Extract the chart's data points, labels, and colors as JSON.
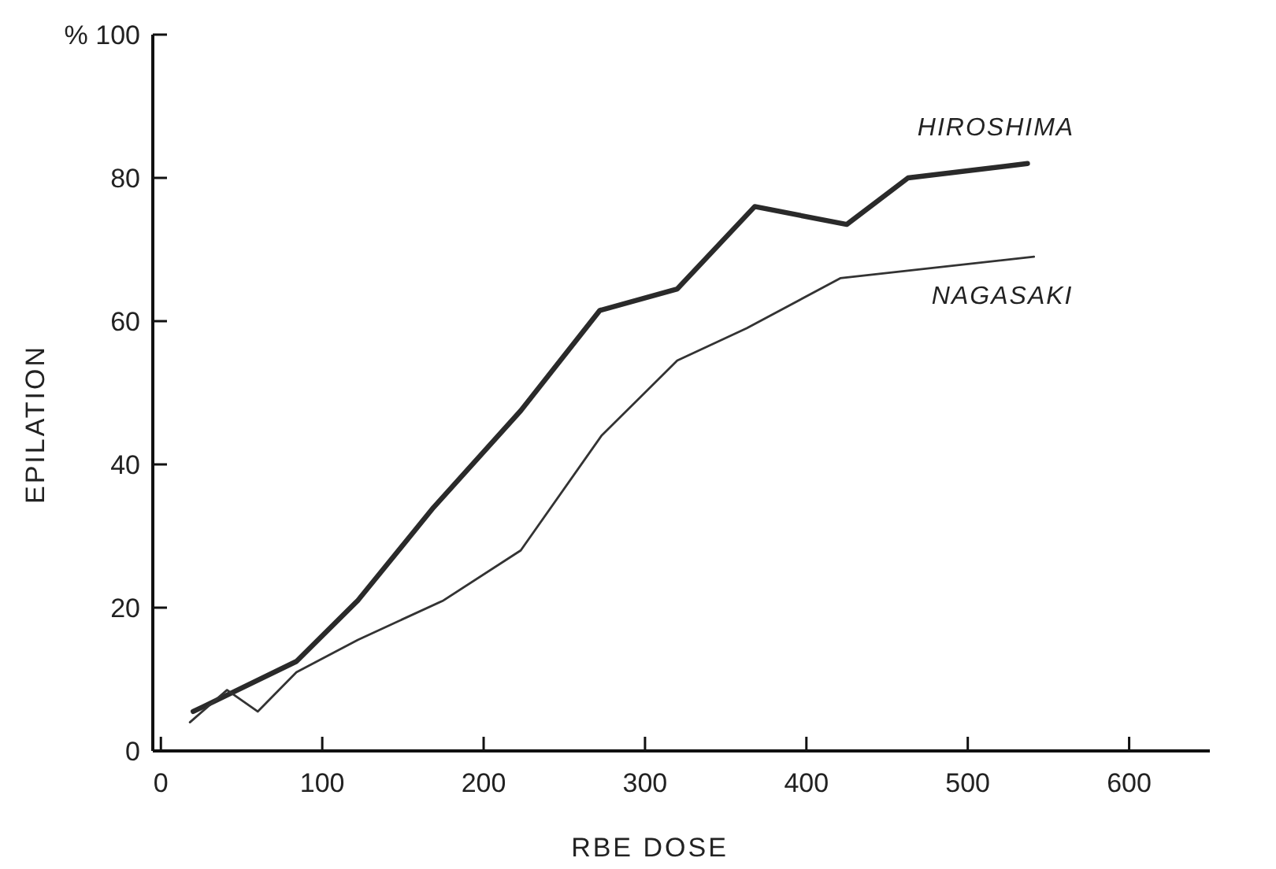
{
  "chart_data": {
    "type": "line",
    "xlabel": "RBE DOSE",
    "ylabel": "EPILATION",
    "xlim": [
      -5,
      650
    ],
    "ylim": [
      0,
      100
    ],
    "xticks": [
      0,
      100,
      200,
      300,
      400,
      500,
      600
    ],
    "yticks": [
      0,
      20,
      40,
      60,
      80,
      {
        "value": 100,
        "label": "% 100"
      }
    ],
    "grid": false,
    "marker": "none",
    "line_style": "solid",
    "series": [
      {
        "name": "HIROSHIMA",
        "color": "#2a2a2a",
        "x": [
          20,
          84,
          122,
          169,
          223,
          272,
          320,
          368,
          425,
          463,
          537
        ],
        "values": [
          5.5,
          12.5,
          21,
          34,
          47.5,
          61.5,
          64.5,
          76,
          73.5,
          80,
          82
        ]
      },
      {
        "name": "NAGASAKI",
        "color": "#333333",
        "x": [
          18,
          41,
          60,
          84,
          122,
          175,
          223,
          273,
          320,
          363,
          421,
          541
        ],
        "values": [
          4,
          8.5,
          5.5,
          11,
          15.5,
          21,
          28,
          44,
          54.5,
          59,
          66,
          69
        ]
      }
    ]
  }
}
